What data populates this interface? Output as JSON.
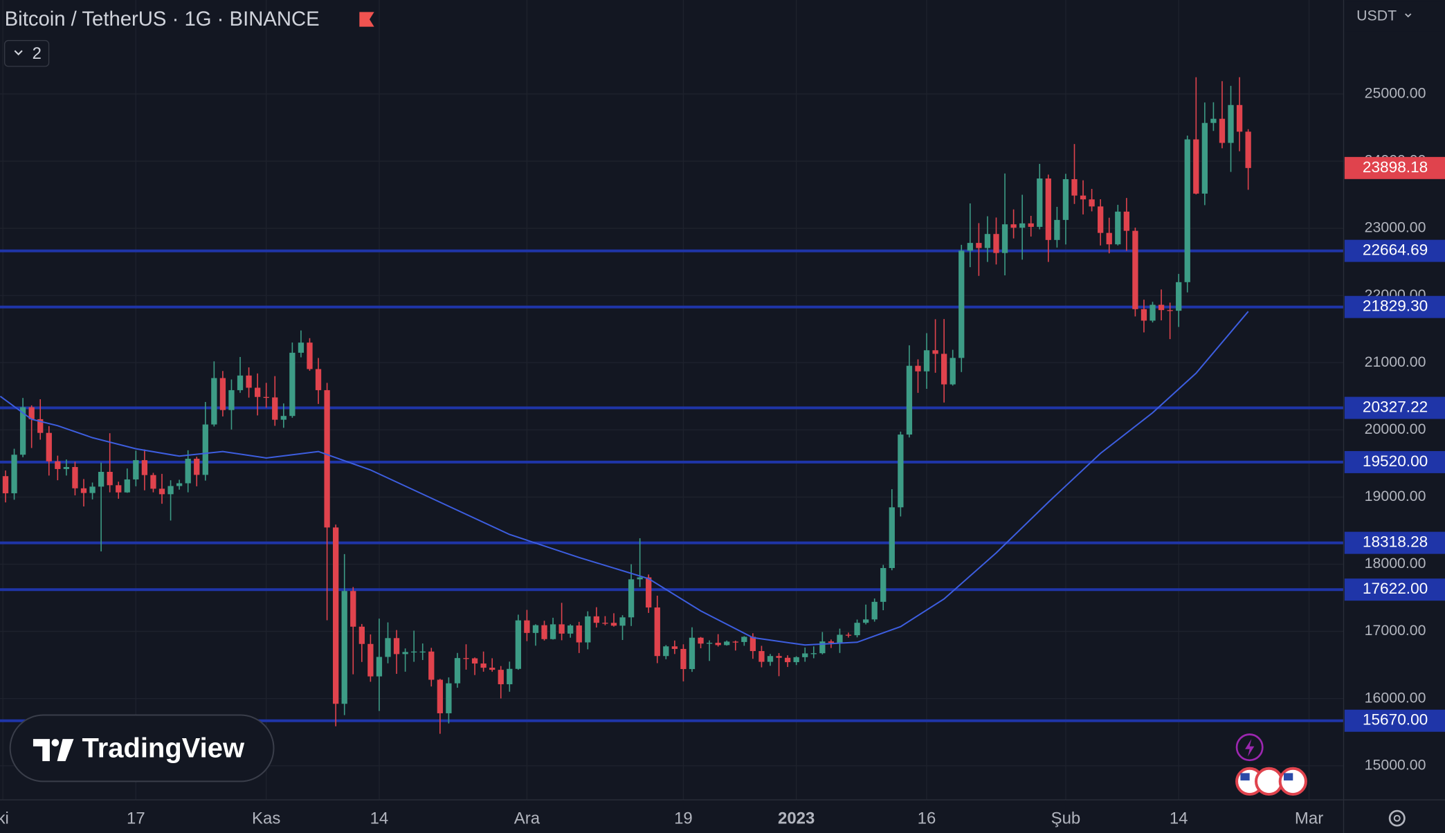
{
  "chart_data": {
    "type": "candlestick",
    "title": "Bitcoin / TetherUS · 1G · BINANCE",
    "badge": "2",
    "currency": "USDT",
    "logo": "TradingView",
    "up_color": "#3d9c86",
    "down_color": "#e0434d",
    "grid": true,
    "xlim": [
      -0.636,
      153.98
    ],
    "ylim": [
      14492.5,
      26399.2
    ],
    "xticks": [
      {
        "value": -0.3,
        "label": "ki"
      },
      {
        "value": 15,
        "label": "17"
      },
      {
        "value": 30,
        "label": "Kas"
      },
      {
        "value": 43,
        "label": "14"
      },
      {
        "value": 60,
        "label": "Ara"
      },
      {
        "value": 78,
        "label": "19"
      },
      {
        "value": 91,
        "label": "2023",
        "bold": true
      },
      {
        "value": 106,
        "label": "16"
      },
      {
        "value": 122,
        "label": "Şub"
      },
      {
        "value": 135,
        "label": "14"
      },
      {
        "value": 150,
        "label": "Mar"
      }
    ],
    "yticks": [
      {
        "value": 15000,
        "label": "15000.00"
      },
      {
        "value": 16000,
        "label": "16000.00"
      },
      {
        "value": 17000,
        "label": "17000.00"
      },
      {
        "value": 18000,
        "label": "18000.00"
      },
      {
        "value": 19000,
        "label": "19000.00"
      },
      {
        "value": 20000,
        "label": "20000.00"
      },
      {
        "value": 21000,
        "label": "21000.00"
      },
      {
        "value": 22000,
        "label": "22000.00"
      },
      {
        "value": 23000,
        "label": "23000.00"
      },
      {
        "value": 24000,
        "label": "24000.00"
      },
      {
        "value": 25000,
        "label": "25000.00"
      }
    ],
    "open": [
      19311,
      19056,
      19630,
      20337,
      20159,
      19955,
      19531,
      19417,
      19447,
      19130,
      19060,
      19155,
      19375,
      19176,
      19069,
      19262,
      19549,
      19327,
      19124,
      19042,
      19164,
      19205,
      19570,
      19330,
      20080,
      20771,
      20295,
      20591,
      20809,
      20627,
      20490,
      20483,
      20151,
      20207,
      21148,
      21299,
      20905,
      20591,
      18547,
      15922,
      17601,
      17070,
      16813,
      16330,
      16620,
      16900,
      16662,
      16693,
      16700,
      16700,
      16280,
      15781,
      16227,
      16603,
      16599,
      16522,
      16459,
      16428,
      16213,
      16442,
      17164,
      16977,
      17092,
      16885,
      17105,
      16967,
      17088,
      16836,
      17224,
      17128,
      17127,
      17085,
      17209,
      17775,
      17804,
      17356,
      16633,
      16777,
      16739,
      16439,
      16906,
      16818,
      16830,
      16796,
      16848,
      16842,
      16919,
      16707,
      16547,
      16633,
      16607,
      16542,
      16616,
      16672,
      16675,
      16850,
      16831,
      16950,
      16943,
      17128,
      17178,
      17440,
      17943,
      18847,
      19930,
      20954,
      20871,
      21185,
      21132,
      20677,
      21071,
      22667,
      22783,
      22707,
      22916,
      22633,
      23060,
      23009,
      23074,
      23022,
      23742,
      22827,
      23125,
      23732,
      23488,
      23431,
      23326,
      22932,
      22762,
      23249,
      22963,
      21797,
      21626,
      21862,
      21783,
      21773,
      22199,
      24324,
      23517,
      24569,
      24631,
      24272,
      24836,
      24439
    ],
    "high": [
      19395,
      19719,
      20475,
      20365,
      20456,
      20056,
      19616,
      19559,
      19525,
      19268,
      19216,
      19513,
      19950,
      19229,
      19425,
      19690,
      19709,
      19360,
      19345,
      19250,
      19257,
      19696,
      19600,
      20415,
      21020,
      20876,
      20750,
      21085,
      20930,
      20840,
      20700,
      20800,
      20393,
      21300,
      21480,
      21365,
      21070,
      20700,
      18590,
      18150,
      17660,
      17110,
      16955,
      17190,
      17134,
      17020,
      16746,
      17011,
      16820,
      16755,
      16293,
      16315,
      16679,
      16808,
      16612,
      16700,
      16600,
      16484,
      16550,
      17249,
      17320,
      17106,
      17158,
      17203,
      17425,
      17107,
      17142,
      17299,
      17360,
      17227,
      17270,
      17241,
      18000,
      18387,
      17847,
      17531,
      16796,
      16864,
      16808,
      17061,
      16917,
      16866,
      16959,
      16864,
      16863,
      16929,
      16972,
      16785,
      16664,
      16677,
      16644,
      16630,
      16760,
      16777,
      16991,
      16879,
      17041,
      16982,
      17176,
      17399,
      17490,
      17990,
      19117,
      19974,
      21258,
      21050,
      21440,
      21647,
      21650,
      21192,
      22755,
      23371,
      23078,
      23180,
      23161,
      23816,
      23282,
      23500,
      23186,
      23960,
      23800,
      23320,
      23812,
      24255,
      23715,
      23587,
      23433,
      23158,
      23350,
      23452,
      23011,
      21938,
      21906,
      22090,
      21894,
      22322,
      24380,
      25250,
      24873,
      24877,
      25191,
      25121,
      25250,
      24476
    ],
    "low": [
      18920,
      18960,
      19593,
      19730,
      19854,
      19320,
      19250,
      19320,
      19025,
      18860,
      18965,
      18190,
      19070,
      18975,
      19063,
      19160,
      19100,
      19070,
      18900,
      18650,
      19110,
      19070,
      19160,
      19245,
      20050,
      20200,
      20005,
      20552,
      20480,
      20215,
      20330,
      20060,
      20031,
      20180,
      21080,
      20880,
      20386,
      17166,
      15588,
      15754,
      16361,
      16545,
      16250,
      15815,
      16525,
      16368,
      16400,
      16547,
      16574,
      16180,
      15476,
      15630,
      16161,
      16430,
      16350,
      16400,
      16400,
      16002,
      16102,
      16428,
      16855,
      16787,
      16864,
      16878,
      16868,
      16906,
      16678,
      16733,
      17058,
      17091,
      17071,
      16872,
      17080,
      17660,
      17275,
      16527,
      16585,
      16663,
      16256,
      16397,
      16749,
      16560,
      16774,
      16788,
      16715,
      16786,
      16592,
      16465,
      16488,
      16333,
      16470,
      16499,
      16548,
      16600,
      16658,
      16753,
      16679,
      16908,
      16911,
      17104,
      17145,
      17315,
      17910,
      18711,
      19888,
      20551,
      20611,
      20850,
      20407,
      20659,
      20861,
      22422,
      22292,
      22500,
      22462,
      22300,
      22850,
      22534,
      22878,
      22985,
      22500,
      22714,
      22760,
      23363,
      23207,
      23253,
      22745,
      22628,
      22745,
      22665,
      21688,
      21451,
      21599,
      21630,
      21351,
      21532,
      22047,
      23505,
      23345,
      24450,
      24192,
      23840,
      24148,
      23574
    ],
    "close": [
      19056,
      19630,
      20337,
      20159,
      19955,
      19531,
      19417,
      19447,
      19130,
      19060,
      19155,
      19375,
      19176,
      19069,
      19262,
      19549,
      19327,
      19124,
      19042,
      19164,
      19205,
      19570,
      19330,
      20080,
      20771,
      20295,
      20591,
      20809,
      20627,
      20490,
      20483,
      20151,
      20207,
      21148,
      21299,
      20905,
      20591,
      18547,
      15922,
      17601,
      17070,
      16813,
      16330,
      16620,
      16900,
      16662,
      16693,
      16700,
      16700,
      16280,
      15781,
      16227,
      16603,
      16599,
      16522,
      16459,
      16428,
      16213,
      16442,
      17164,
      16977,
      17092,
      16885,
      17105,
      16967,
      17088,
      16836,
      17224,
      17128,
      17127,
      17085,
      17209,
      17775,
      17804,
      17356,
      16633,
      16777,
      16739,
      16439,
      16906,
      16818,
      16830,
      16796,
      16848,
      16842,
      16919,
      16707,
      16547,
      16633,
      16607,
      16542,
      16616,
      16672,
      16675,
      16850,
      16831,
      16950,
      16943,
      17128,
      17178,
      17440,
      17943,
      18847,
      19930,
      20954,
      20871,
      21185,
      21132,
      20677,
      21071,
      22667,
      22783,
      22707,
      22916,
      22633,
      23060,
      23009,
      23074,
      23022,
      23742,
      22827,
      23125,
      23732,
      23488,
      23431,
      23326,
      22932,
      22762,
      23249,
      22963,
      21797,
      21626,
      21862,
      21783,
      21773,
      22199,
      24324,
      23517,
      24569,
      24631,
      24272,
      24836,
      24439,
      23898.18
    ],
    "ma": {
      "color": "#3d5ee0",
      "x": [
        -0.6,
        3,
        6,
        10,
        15,
        20,
        25,
        30,
        36,
        42,
        50,
        58,
        66,
        74,
        80,
        86,
        92,
        98,
        103,
        108,
        114,
        120,
        126,
        132,
        137,
        143
      ],
      "values": [
        20500,
        20158,
        20062,
        19883,
        19719,
        19609,
        19678,
        19582,
        19678,
        19403,
        18923,
        18443,
        18100,
        17785,
        17305,
        16907,
        16797,
        16838,
        17072,
        17483,
        18169,
        18923,
        19650,
        20254,
        20844,
        21763
      ]
    },
    "level_color": "#1f35a8",
    "levels": [
      {
        "value": 22664.69,
        "label": "22664.69"
      },
      {
        "value": 21829.3,
        "label": "21829.30"
      },
      {
        "value": 20327.22,
        "label": "20327.22"
      },
      {
        "value": 19520.0,
        "label": "19520.00"
      },
      {
        "value": 18318.28,
        "label": "18318.28"
      },
      {
        "value": 17622.0,
        "label": "17622.00"
      },
      {
        "value": 15670.0,
        "label": "15670.00"
      }
    ],
    "last_price": {
      "value": 23898.18,
      "label": "23898.18",
      "color": "#e0434d"
    }
  }
}
